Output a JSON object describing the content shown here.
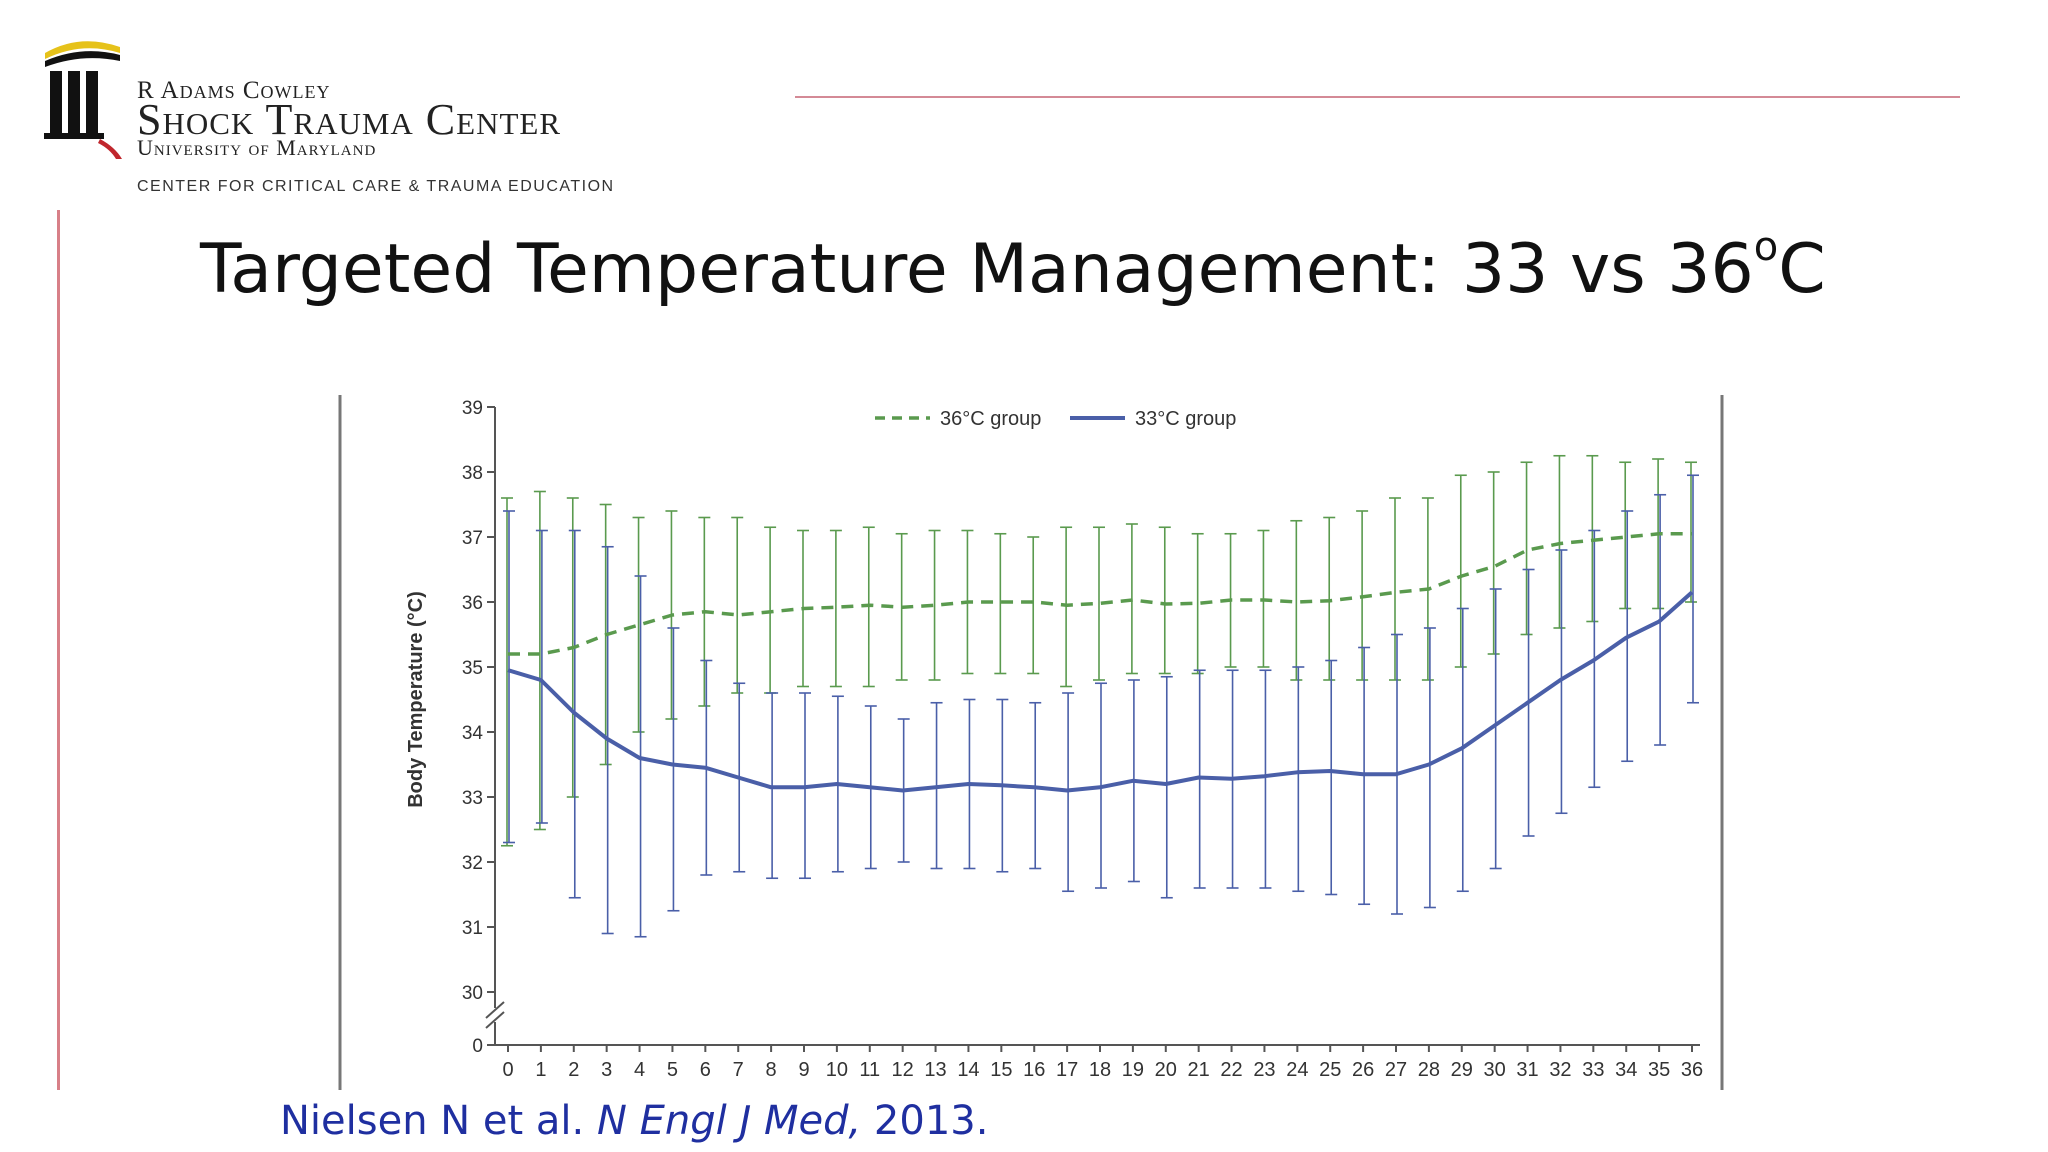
{
  "header": {
    "logo_line1": "R Adams Cowley",
    "logo_line2": "Shock Trauma Center",
    "logo_line3": "University of Maryland",
    "logo_line4": "CENTER FOR CRITICAL CARE & TRAUMA EDUCATION"
  },
  "slide": {
    "title_main": "Targeted Temperature Management: 33 vs 36",
    "title_sup": "o",
    "title_unit": "C"
  },
  "citation": {
    "authors": "Nielsen N et al. ",
    "journal": "N Engl J Med,",
    "year": " 2013."
  },
  "colors": {
    "series36": "#5a9a4e",
    "series33": "#4a5fa8",
    "accent_rule": "#d48a96",
    "citation": "#1f2fa0"
  },
  "chart_data": {
    "type": "line",
    "xlabel": "",
    "ylabel": "Body Temperature (°C)",
    "ylim": [
      30,
      39
    ],
    "y_break": true,
    "y_ticks": [
      "0",
      "30",
      "31",
      "32",
      "33",
      "34",
      "35",
      "36",
      "37",
      "38",
      "39"
    ],
    "x": [
      0,
      1,
      2,
      3,
      4,
      5,
      6,
      7,
      8,
      9,
      10,
      11,
      12,
      13,
      14,
      15,
      16,
      17,
      18,
      19,
      20,
      21,
      22,
      23,
      24,
      25,
      26,
      27,
      28,
      29,
      30,
      31,
      32,
      33,
      34,
      35,
      36
    ],
    "legend_position": "top-center",
    "series": [
      {
        "name": "36°C group",
        "style": "dashed",
        "values": [
          35.2,
          35.2,
          35.3,
          35.5,
          35.65,
          35.8,
          35.85,
          35.8,
          35.85,
          35.9,
          35.92,
          35.95,
          35.92,
          35.95,
          36.0,
          36.0,
          36.0,
          35.95,
          35.98,
          36.03,
          35.97,
          35.98,
          36.03,
          36.03,
          36.0,
          36.02,
          36.08,
          36.15,
          36.2,
          36.4,
          36.55,
          36.8,
          36.9,
          36.95,
          37.0,
          37.05,
          37.05
        ],
        "err_low": [
          32.25,
          32.5,
          33.0,
          33.5,
          34.0,
          34.2,
          34.4,
          34.6,
          34.6,
          34.7,
          34.7,
          34.7,
          34.8,
          34.8,
          34.9,
          34.9,
          34.9,
          34.7,
          34.8,
          34.9,
          34.9,
          34.9,
          35.0,
          35.0,
          34.8,
          34.8,
          34.8,
          34.8,
          34.8,
          35.0,
          35.2,
          35.5,
          35.6,
          35.7,
          35.9,
          35.9,
          36.0
        ],
        "err_high": [
          37.6,
          37.7,
          37.6,
          37.5,
          37.3,
          37.4,
          37.3,
          37.3,
          37.15,
          37.1,
          37.1,
          37.15,
          37.05,
          37.1,
          37.1,
          37.05,
          37.0,
          37.15,
          37.15,
          37.2,
          37.15,
          37.05,
          37.05,
          37.1,
          37.25,
          37.3,
          37.4,
          37.6,
          37.6,
          37.95,
          38.0,
          38.15,
          38.25,
          38.25,
          38.15,
          38.2,
          38.15
        ]
      },
      {
        "name": "33°C group",
        "style": "solid",
        "values": [
          34.95,
          34.8,
          34.3,
          33.9,
          33.6,
          33.5,
          33.45,
          33.3,
          33.15,
          33.15,
          33.2,
          33.15,
          33.1,
          33.15,
          33.2,
          33.18,
          33.15,
          33.1,
          33.15,
          33.25,
          33.2,
          33.3,
          33.28,
          33.32,
          33.38,
          33.4,
          33.35,
          33.35,
          33.5,
          33.75,
          34.1,
          34.45,
          34.8,
          35.1,
          35.45,
          35.7,
          36.15
        ],
        "err_low": [
          32.3,
          32.6,
          31.45,
          30.9,
          30.85,
          31.25,
          31.8,
          31.85,
          31.75,
          31.75,
          31.85,
          31.9,
          32.0,
          31.9,
          31.9,
          31.85,
          31.9,
          31.55,
          31.6,
          31.7,
          31.45,
          31.6,
          31.6,
          31.6,
          31.55,
          31.5,
          31.35,
          31.2,
          31.3,
          31.55,
          31.9,
          32.4,
          32.75,
          33.15,
          33.55,
          33.8,
          34.45
        ],
        "err_high": [
          37.4,
          37.1,
          37.1,
          36.85,
          36.4,
          35.6,
          35.1,
          34.75,
          34.6,
          34.6,
          34.55,
          34.4,
          34.2,
          34.45,
          34.5,
          34.5,
          34.45,
          34.6,
          34.75,
          34.8,
          34.85,
          34.95,
          34.95,
          34.95,
          35.0,
          35.1,
          35.3,
          35.5,
          35.6,
          35.9,
          36.2,
          36.5,
          36.8,
          37.1,
          37.4,
          37.65,
          37.95
        ]
      }
    ]
  }
}
